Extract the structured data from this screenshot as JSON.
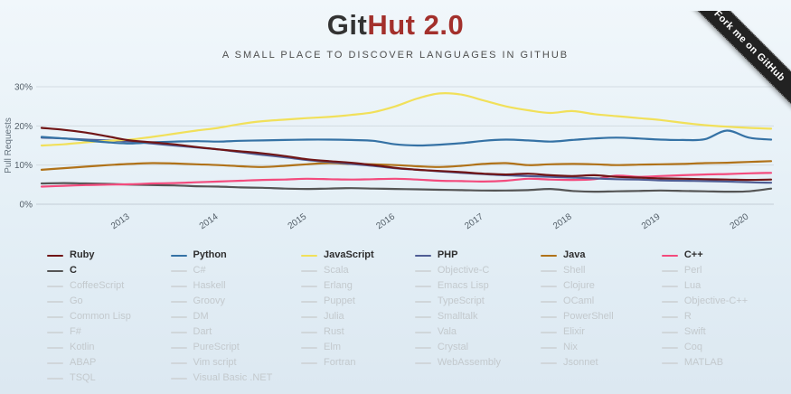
{
  "page": {
    "title_git": "Git",
    "title_hut": "Hut 2.0",
    "subtitle": "A SMALL PLACE TO DISCOVER LANGUAGES IN GITHUB",
    "ribbon": "Fork me on GitHub",
    "background_tint": "#e4eff6",
    "title_accent_color": "#a3302c"
  },
  "chart_data": {
    "type": "line",
    "title": "",
    "xlabel": "",
    "ylabel": "Pull Requests",
    "xlim": [
      2012,
      2020.25
    ],
    "ylim": [
      0,
      30
    ],
    "grid": "horizontal",
    "legend_position": "bottom",
    "y_tick_values": [
      0,
      10,
      20,
      30
    ],
    "y_tick_labels": [
      "0%",
      "10%",
      "20%",
      "30%"
    ],
    "x_tick_labels": [
      "2013",
      "2014",
      "2015",
      "2016",
      "2017",
      "2018",
      "2019",
      "2020"
    ],
    "x": [
      2012,
      2012.25,
      2012.5,
      2012.75,
      2013,
      2013.25,
      2013.5,
      2013.75,
      2014,
      2014.25,
      2014.5,
      2014.75,
      2015,
      2015.25,
      2015.5,
      2015.75,
      2016,
      2016.25,
      2016.5,
      2016.75,
      2017,
      2017.25,
      2017.5,
      2017.75,
      2018,
      2018.25,
      2018.5,
      2018.75,
      2019,
      2019.25,
      2019.5,
      2019.75,
      2020,
      2020.25
    ],
    "series": [
      {
        "name": "Ruby",
        "color": "#701516",
        "values": [
          19.5,
          19.0,
          18.3,
          17.3,
          16.3,
          15.8,
          15.3,
          14.6,
          14.0,
          13.5,
          13.0,
          12.3,
          11.5,
          11.0,
          10.6,
          10.0,
          9.3,
          8.8,
          8.5,
          8.2,
          7.8,
          7.6,
          7.8,
          7.4,
          7.2,
          7.4,
          7.0,
          6.8,
          6.6,
          6.5,
          6.4,
          6.3,
          6.2,
          6.3
        ]
      },
      {
        "name": "Python",
        "color": "#3572A5",
        "values": [
          17.2,
          16.8,
          16.3,
          15.8,
          15.5,
          15.8,
          16.0,
          16.1,
          16.0,
          16.2,
          16.3,
          16.4,
          16.5,
          16.5,
          16.4,
          16.2,
          15.3,
          15.0,
          15.2,
          15.6,
          16.2,
          16.5,
          16.3,
          16.0,
          16.4,
          16.8,
          17.0,
          16.8,
          16.5,
          16.4,
          16.6,
          18.8,
          17.0,
          16.5
        ]
      },
      {
        "name": "JavaScript",
        "color": "#f1e05a",
        "values": [
          15.0,
          15.3,
          15.8,
          16.2,
          16.5,
          17.2,
          18.0,
          18.8,
          19.5,
          20.5,
          21.2,
          21.6,
          22.0,
          22.3,
          22.8,
          23.5,
          25.0,
          27.0,
          28.3,
          28.0,
          26.5,
          25.0,
          24.0,
          23.3,
          23.8,
          23.0,
          22.5,
          22.0,
          21.5,
          20.8,
          20.2,
          19.8,
          19.5,
          19.3
        ]
      },
      {
        "name": "PHP",
        "color": "#4F5D95",
        "values": [
          17.0,
          16.8,
          16.5,
          16.3,
          16.0,
          15.5,
          15.0,
          14.5,
          14.0,
          13.3,
          12.6,
          12.0,
          11.3,
          10.8,
          10.3,
          9.8,
          9.2,
          8.8,
          8.4,
          8.0,
          7.7,
          7.4,
          7.2,
          7.0,
          6.8,
          6.6,
          6.4,
          6.3,
          6.1,
          6.0,
          5.9,
          5.8,
          5.6,
          5.5
        ]
      },
      {
        "name": "Java",
        "color": "#b07219",
        "values": [
          8.8,
          9.2,
          9.6,
          10.0,
          10.3,
          10.5,
          10.4,
          10.2,
          10.0,
          9.7,
          9.5,
          9.8,
          10.2,
          10.5,
          10.3,
          10.2,
          10.0,
          9.7,
          9.5,
          9.8,
          10.3,
          10.5,
          10.0,
          10.2,
          10.3,
          10.2,
          10.0,
          10.1,
          10.2,
          10.3,
          10.5,
          10.6,
          10.8,
          11.0
        ]
      },
      {
        "name": "C++",
        "color": "#f34b7d",
        "values": [
          4.5,
          4.7,
          4.9,
          5.0,
          5.1,
          5.3,
          5.4,
          5.6,
          5.8,
          6.0,
          6.2,
          6.3,
          6.5,
          6.4,
          6.3,
          6.4,
          6.5,
          6.3,
          6.0,
          5.9,
          5.8,
          6.0,
          6.5,
          6.3,
          6.2,
          6.4,
          7.3,
          7.0,
          7.2,
          7.4,
          7.6,
          7.7,
          7.9,
          8.0
        ]
      },
      {
        "name": "C",
        "color": "#555555",
        "values": [
          5.3,
          5.4,
          5.3,
          5.2,
          5.0,
          4.9,
          4.8,
          4.6,
          4.5,
          4.3,
          4.2,
          4.0,
          3.9,
          4.0,
          4.1,
          4.0,
          3.9,
          3.8,
          3.7,
          3.6,
          3.5,
          3.5,
          3.6,
          3.9,
          3.4,
          3.2,
          3.3,
          3.4,
          3.5,
          3.4,
          3.3,
          3.2,
          3.3,
          4.0
        ]
      }
    ]
  },
  "legend": {
    "active_text_color": "#2e2e2e",
    "inactive_text_color": "#c3c9cd",
    "inactive_dash_color": "#d0d6da",
    "columns": [
      {
        "items": [
          {
            "label": "Ruby",
            "active": true,
            "color": "#701516"
          },
          {
            "label": "C",
            "active": true,
            "color": "#555555"
          },
          {
            "label": "CoffeeScript",
            "active": false
          },
          {
            "label": "Go",
            "active": false
          },
          {
            "label": "Common Lisp",
            "active": false
          },
          {
            "label": "F#",
            "active": false
          },
          {
            "label": "Kotlin",
            "active": false
          },
          {
            "label": "ABAP",
            "active": false
          },
          {
            "label": "TSQL",
            "active": false
          }
        ]
      },
      {
        "items": [
          {
            "label": "Python",
            "active": true,
            "color": "#3572A5"
          },
          {
            "label": "C#",
            "active": false
          },
          {
            "label": "Haskell",
            "active": false
          },
          {
            "label": "Groovy",
            "active": false
          },
          {
            "label": "DM",
            "active": false
          },
          {
            "label": "Dart",
            "active": false
          },
          {
            "label": "PureScript",
            "active": false
          },
          {
            "label": "Vim script",
            "active": false
          },
          {
            "label": "Visual Basic .NET",
            "active": false
          }
        ]
      },
      {
        "items": [
          {
            "label": "JavaScript",
            "active": true,
            "color": "#f1e05a"
          },
          {
            "label": "Scala",
            "active": false
          },
          {
            "label": "Erlang",
            "active": false
          },
          {
            "label": "Puppet",
            "active": false
          },
          {
            "label": "Julia",
            "active": false
          },
          {
            "label": "Rust",
            "active": false
          },
          {
            "label": "Elm",
            "active": false
          },
          {
            "label": "Fortran",
            "active": false
          }
        ]
      },
      {
        "items": [
          {
            "label": "PHP",
            "active": true,
            "color": "#4F5D95"
          },
          {
            "label": "Objective-C",
            "active": false
          },
          {
            "label": "Emacs Lisp",
            "active": false
          },
          {
            "label": "TypeScript",
            "active": false
          },
          {
            "label": "Smalltalk",
            "active": false
          },
          {
            "label": "Vala",
            "active": false
          },
          {
            "label": "Crystal",
            "active": false
          },
          {
            "label": "WebAssembly",
            "active": false
          }
        ]
      },
      {
        "items": [
          {
            "label": "Java",
            "active": true,
            "color": "#b07219"
          },
          {
            "label": "Shell",
            "active": false
          },
          {
            "label": "Clojure",
            "active": false
          },
          {
            "label": "OCaml",
            "active": false
          },
          {
            "label": "PowerShell",
            "active": false
          },
          {
            "label": "Elixir",
            "active": false
          },
          {
            "label": "Nix",
            "active": false
          },
          {
            "label": "Jsonnet",
            "active": false
          }
        ]
      },
      {
        "items": [
          {
            "label": "C++",
            "active": true,
            "color": "#f34b7d"
          },
          {
            "label": "Perl",
            "active": false
          },
          {
            "label": "Lua",
            "active": false
          },
          {
            "label": "Objective-C++",
            "active": false
          },
          {
            "label": "R",
            "active": false
          },
          {
            "label": "Swift",
            "active": false
          },
          {
            "label": "Coq",
            "active": false
          },
          {
            "label": "MATLAB",
            "active": false
          }
        ]
      }
    ]
  }
}
